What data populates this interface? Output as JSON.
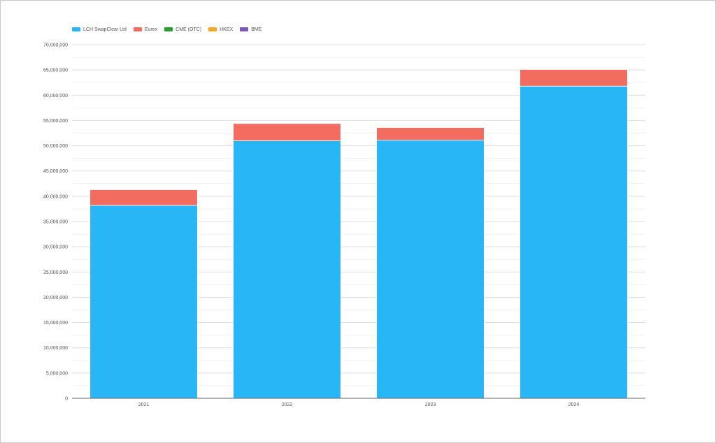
{
  "chart_data": {
    "type": "bar",
    "stacked": true,
    "categories": [
      "2021",
      "2022",
      "2023",
      "2024"
    ],
    "series": [
      {
        "name": "LCH SwapClear Ltd",
        "color": "#29b6f6",
        "values": [
          38200000,
          51000000,
          51100000,
          61800000
        ]
      },
      {
        "name": "Eurex",
        "color": "#f26d60",
        "values": [
          3100000,
          3400000,
          2500000,
          3300000
        ]
      },
      {
        "name": "CME (OTC)",
        "color": "#2ca02c",
        "values": [
          0,
          0,
          0,
          0
        ]
      },
      {
        "name": "HKEX",
        "color": "#f5a623",
        "values": [
          0,
          0,
          0,
          0
        ]
      },
      {
        "name": "BME",
        "color": "#7e57c2",
        "values": [
          0,
          0,
          0,
          0
        ]
      }
    ],
    "y_ticks": [
      "0",
      "5,000,000",
      "10,000,000",
      "15,000,000",
      "20,000,000",
      "25,000,000",
      "30,000,000",
      "35,000,000",
      "40,000,000",
      "45,000,000",
      "50,000,000",
      "55,000,000",
      "60,000,000",
      "65,000,000",
      "70,000,000"
    ],
    "ylim": [
      0,
      70000000
    ],
    "y_step": 5000000,
    "grid": true,
    "legend_position": "top-left"
  }
}
